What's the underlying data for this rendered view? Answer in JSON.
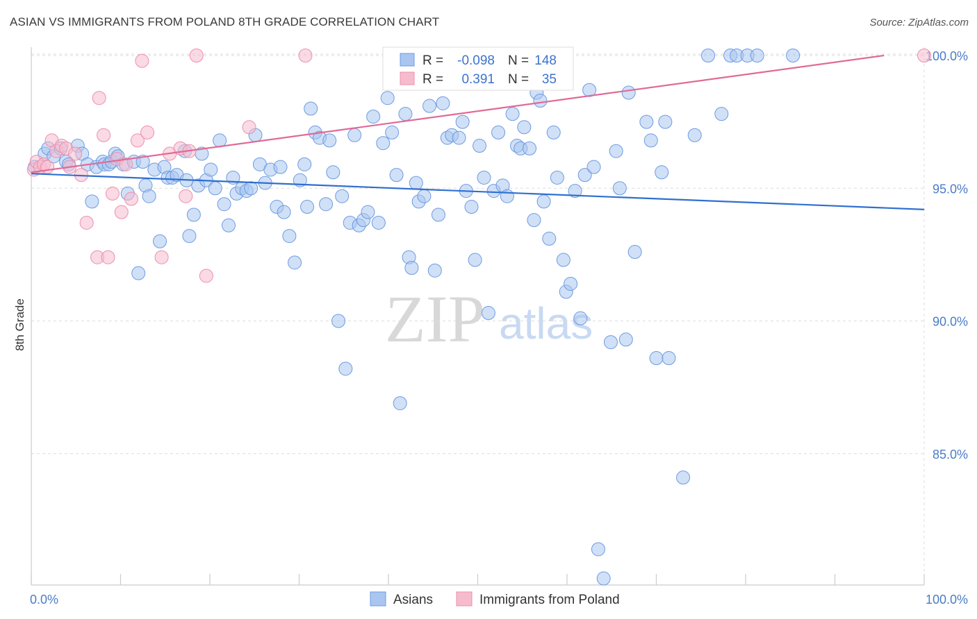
{
  "title": "ASIAN VS IMMIGRANTS FROM POLAND 8TH GRADE CORRELATION CHART",
  "source": "Source: ZipAtlas.com",
  "watermark": {
    "zip": "ZIP",
    "atlas": "atlas"
  },
  "colors": {
    "asian_fill": "#a9c6f0",
    "asian_stroke": "#6d9be0",
    "asian_line": "#2f6fcf",
    "poland_fill": "#f6bccd",
    "poland_stroke": "#ec8fab",
    "poland_line": "#e06a96",
    "grid": "#dcdcdc",
    "axis_text": "#4a7cc9"
  },
  "legend": {
    "rows": [
      {
        "r_label": "R =",
        "r_value": "-0.098",
        "n_label": "N =",
        "n_value": "148"
      },
      {
        "r_label": "R =",
        "r_value": "0.391",
        "n_label": "N =",
        "n_value": "35"
      }
    ]
  },
  "bottom_legend": {
    "asian": "Asians",
    "poland": "Immigrants from Poland"
  },
  "chart_data": {
    "type": "scatter",
    "title": "ASIAN VS IMMIGRANTS FROM POLAND 8TH GRADE CORRELATION CHART",
    "xlabel": "",
    "ylabel": "8th Grade",
    "x_tick_labels": [
      "0.0%",
      "100.0%"
    ],
    "y_tick_labels": [
      "85.0%",
      "90.0%",
      "95.0%",
      "100.0%"
    ],
    "y_ticks": [
      85,
      90,
      95,
      100
    ],
    "xlim": [
      0,
      100
    ],
    "ylim": [
      80.3,
      100.5
    ],
    "grid": true,
    "legend_position": "top-center",
    "series": [
      {
        "name": "Asians",
        "r": -0.098,
        "n": 148,
        "trend": {
          "x": [
            0,
            100
          ],
          "y": [
            95.55,
            94.2
          ]
        },
        "points": [
          [
            0.4,
            95.8
          ],
          [
            1.5,
            96.3
          ],
          [
            1.9,
            96.5
          ],
          [
            2.5,
            96.2
          ],
          [
            3.3,
            96.5
          ],
          [
            3.9,
            96.0
          ],
          [
            4.2,
            95.9
          ],
          [
            5.2,
            96.6
          ],
          [
            5.7,
            96.3
          ],
          [
            6.3,
            95.9
          ],
          [
            6.8,
            94.5
          ],
          [
            7.3,
            95.8
          ],
          [
            8.0,
            96.0
          ],
          [
            8.2,
            95.9
          ],
          [
            8.7,
            95.9
          ],
          [
            9.0,
            96.0
          ],
          [
            9.4,
            96.3
          ],
          [
            9.7,
            96.2
          ],
          [
            10.3,
            95.9
          ],
          [
            10.8,
            94.8
          ],
          [
            11.5,
            96.0
          ],
          [
            12.0,
            91.8
          ],
          [
            12.5,
            96.0
          ],
          [
            12.8,
            95.1
          ],
          [
            13.2,
            94.7
          ],
          [
            13.8,
            95.7
          ],
          [
            14.4,
            93.0
          ],
          [
            14.9,
            95.8
          ],
          [
            15.3,
            95.4
          ],
          [
            15.8,
            95.4
          ],
          [
            16.3,
            95.5
          ],
          [
            17.2,
            96.4
          ],
          [
            17.4,
            95.3
          ],
          [
            17.7,
            93.2
          ],
          [
            18.2,
            94.0
          ],
          [
            18.7,
            95.1
          ],
          [
            19.1,
            96.3
          ],
          [
            19.6,
            95.3
          ],
          [
            20.1,
            95.7
          ],
          [
            20.6,
            95.0
          ],
          [
            21.1,
            96.8
          ],
          [
            21.6,
            94.4
          ],
          [
            22.1,
            93.6
          ],
          [
            22.6,
            95.4
          ],
          [
            23.0,
            94.8
          ],
          [
            23.6,
            95.0
          ],
          [
            24.1,
            94.9
          ],
          [
            24.6,
            95.0
          ],
          [
            25.1,
            97.0
          ],
          [
            25.6,
            95.9
          ],
          [
            26.2,
            95.2
          ],
          [
            26.8,
            95.7
          ],
          [
            27.5,
            94.3
          ],
          [
            27.9,
            95.8
          ],
          [
            28.3,
            94.1
          ],
          [
            28.9,
            93.2
          ],
          [
            29.5,
            92.2
          ],
          [
            30.1,
            95.3
          ],
          [
            30.6,
            95.9
          ],
          [
            30.9,
            94.3
          ],
          [
            31.3,
            98.0
          ],
          [
            31.8,
            97.1
          ],
          [
            32.3,
            96.9
          ],
          [
            33.0,
            94.4
          ],
          [
            33.4,
            96.8
          ],
          [
            33.8,
            95.6
          ],
          [
            34.4,
            90.0
          ],
          [
            34.8,
            94.7
          ],
          [
            35.2,
            88.2
          ],
          [
            35.7,
            93.7
          ],
          [
            36.2,
            97.0
          ],
          [
            36.7,
            93.6
          ],
          [
            37.2,
            93.8
          ],
          [
            37.7,
            94.1
          ],
          [
            38.3,
            97.7
          ],
          [
            38.9,
            93.7
          ],
          [
            39.4,
            96.7
          ],
          [
            39.9,
            98.4
          ],
          [
            40.4,
            97.1
          ],
          [
            40.9,
            95.5
          ],
          [
            41.3,
            86.9
          ],
          [
            41.9,
            97.8
          ],
          [
            42.3,
            92.4
          ],
          [
            42.6,
            92.0
          ],
          [
            43.1,
            95.2
          ],
          [
            43.4,
            94.5
          ],
          [
            44.0,
            94.7
          ],
          [
            44.6,
            98.1
          ],
          [
            45.2,
            91.9
          ],
          [
            45.6,
            94.0
          ],
          [
            46.1,
            98.2
          ],
          [
            46.6,
            96.9
          ],
          [
            47.1,
            97.0
          ],
          [
            47.9,
            96.9
          ],
          [
            48.3,
            97.5
          ],
          [
            48.7,
            94.9
          ],
          [
            49.3,
            94.3
          ],
          [
            49.7,
            92.3
          ],
          [
            50.2,
            96.6
          ],
          [
            50.7,
            95.4
          ],
          [
            51.2,
            90.3
          ],
          [
            51.8,
            94.9
          ],
          [
            52.3,
            97.1
          ],
          [
            52.8,
            95.1
          ],
          [
            53.3,
            94.7
          ],
          [
            53.9,
            97.8
          ],
          [
            54.4,
            96.6
          ],
          [
            54.8,
            96.5
          ],
          [
            55.2,
            97.3
          ],
          [
            55.8,
            96.5
          ],
          [
            56.3,
            93.8
          ],
          [
            56.6,
            98.6
          ],
          [
            57.0,
            98.3
          ],
          [
            57.4,
            94.5
          ],
          [
            58.0,
            93.1
          ],
          [
            58.5,
            97.1
          ],
          [
            58.9,
            95.4
          ],
          [
            59.6,
            92.3
          ],
          [
            59.9,
            91.1
          ],
          [
            60.4,
            91.4
          ],
          [
            60.9,
            94.9
          ],
          [
            61.5,
            90.1
          ],
          [
            62.0,
            95.5
          ],
          [
            62.5,
            98.7
          ],
          [
            63.0,
            95.8
          ],
          [
            63.5,
            81.4
          ],
          [
            64.1,
            80.3
          ],
          [
            64.9,
            89.2
          ],
          [
            65.5,
            96.4
          ],
          [
            65.9,
            95.0
          ],
          [
            66.6,
            89.3
          ],
          [
            66.9,
            98.6
          ],
          [
            67.6,
            92.6
          ],
          [
            68.9,
            97.5
          ],
          [
            69.4,
            96.8
          ],
          [
            70.0,
            88.6
          ],
          [
            70.6,
            95.6
          ],
          [
            71.0,
            97.5
          ],
          [
            71.4,
            88.6
          ],
          [
            73.0,
            84.1
          ],
          [
            74.3,
            97.0
          ],
          [
            75.8,
            100.0
          ],
          [
            77.3,
            97.8
          ],
          [
            78.3,
            100.0
          ],
          [
            79.0,
            100.0
          ],
          [
            80.2,
            100.0
          ],
          [
            81.3,
            100.0
          ],
          [
            85.3,
            100.0
          ]
        ]
      },
      {
        "name": "Immigrants from Poland",
        "r": 0.391,
        "n": 35,
        "trend": {
          "x": [
            0,
            95.5
          ],
          "y": [
            95.6,
            100.0
          ]
        },
        "points": [
          [
            0.3,
            95.7
          ],
          [
            0.6,
            96.0
          ],
          [
            1.0,
            95.8
          ],
          [
            1.4,
            95.9
          ],
          [
            1.8,
            95.8
          ],
          [
            2.3,
            96.8
          ],
          [
            2.8,
            96.4
          ],
          [
            3.4,
            96.6
          ],
          [
            3.9,
            96.5
          ],
          [
            4.3,
            95.8
          ],
          [
            4.9,
            96.3
          ],
          [
            5.6,
            95.5
          ],
          [
            6.2,
            93.7
          ],
          [
            7.4,
            92.4
          ],
          [
            7.6,
            98.4
          ],
          [
            8.1,
            97.0
          ],
          [
            8.6,
            92.4
          ],
          [
            9.1,
            94.8
          ],
          [
            9.6,
            96.1
          ],
          [
            10.1,
            94.1
          ],
          [
            10.6,
            95.9
          ],
          [
            11.2,
            94.6
          ],
          [
            11.9,
            96.8
          ],
          [
            12.4,
            99.8
          ],
          [
            13.0,
            97.1
          ],
          [
            14.6,
            92.4
          ],
          [
            15.5,
            96.3
          ],
          [
            16.7,
            96.5
          ],
          [
            17.3,
            94.7
          ],
          [
            17.7,
            96.4
          ],
          [
            18.5,
            100.0
          ],
          [
            19.6,
            91.7
          ],
          [
            24.4,
            97.3
          ],
          [
            30.7,
            100.0
          ],
          [
            100.0,
            100.0
          ]
        ]
      }
    ]
  }
}
